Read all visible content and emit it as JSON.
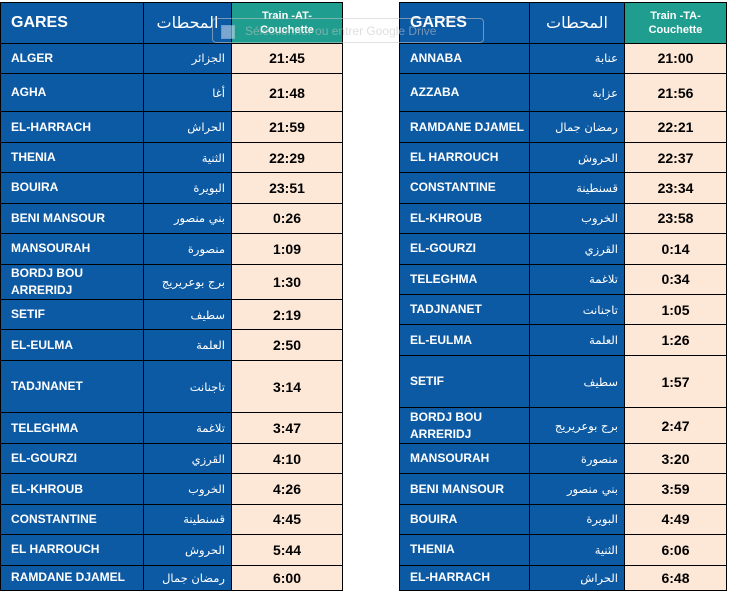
{
  "left_table": {
    "header": {
      "stations_label": "GARES",
      "stations_label_ar": "المحطات",
      "train_label": "Train -AT-\nCouchette"
    },
    "rows": [
      {
        "name": "ALGER",
        "name_ar": "الجزائر",
        "time": "21:45"
      },
      {
        "name": "AGHA",
        "name_ar": "أغا",
        "time": "21:48"
      },
      {
        "name": "EL-HARRACH",
        "name_ar": "الحراش",
        "time": "21:59"
      },
      {
        "name": "THENIA",
        "name_ar": "الثنية",
        "time": "22:29"
      },
      {
        "name": "BOUIRA",
        "name_ar": "البويرة",
        "time": "23:51"
      },
      {
        "name": "BENI MANSOUR",
        "name_ar": "بني منصور",
        "time": "0:26"
      },
      {
        "name": "MANSOURAH",
        "name_ar": "منصورة",
        "time": "1:09"
      },
      {
        "name": "BORDJ BOU ARRERIDJ",
        "name_ar": "برج بوعريريج",
        "time": "1:30"
      },
      {
        "name": "SETIF",
        "name_ar": "سطيف",
        "time": "2:19"
      },
      {
        "name": "EL-EULMA",
        "name_ar": "العلمة",
        "time": "2:50"
      },
      {
        "name": "TADJNANET",
        "name_ar": "تاجنانت",
        "time": "3:14"
      },
      {
        "name": "TELEGHMA",
        "name_ar": "تلاغمة",
        "time": "3:47"
      },
      {
        "name": "EL-GOURZI",
        "name_ar": "القرزي",
        "time": "4:10"
      },
      {
        "name": "EL-KHROUB",
        "name_ar": "الخروب",
        "time": "4:26"
      },
      {
        "name": "CONSTANTINE",
        "name_ar": "قسنطينة",
        "time": "4:45"
      },
      {
        "name": "EL HARROUCH",
        "name_ar": "الحروش",
        "time": "5:44"
      },
      {
        "name": "RAMDANE DJAMEL",
        "name_ar": "رمضان جمال",
        "time": "6:00"
      }
    ]
  },
  "right_table": {
    "header": {
      "stations_label": "GARES",
      "stations_label_ar": "المحطات",
      "train_label": "Train -TA-\nCouchette"
    },
    "rows": [
      {
        "name": "ANNABA",
        "name_ar": "عنابة",
        "time": "21:00"
      },
      {
        "name": "AZZABA",
        "name_ar": "عزابة",
        "time": "21:56"
      },
      {
        "name": "RAMDANE DJAMEL",
        "name_ar": "رمضان جمال",
        "time": "22:21"
      },
      {
        "name": "EL HARROUCH",
        "name_ar": "الحروش",
        "time": "22:37"
      },
      {
        "name": "CONSTANTINE",
        "name_ar": "قسنطينة",
        "time": "23:34"
      },
      {
        "name": "EL-KHROUB",
        "name_ar": "الخروب",
        "time": "23:58"
      },
      {
        "name": "EL-GOURZI",
        "name_ar": "القرزي",
        "time": "0:14"
      },
      {
        "name": "TELEGHMA",
        "name_ar": "تلاغمة",
        "time": "0:34"
      },
      {
        "name": "TADJNANET",
        "name_ar": "تاجنانت",
        "time": "1:05"
      },
      {
        "name": "EL-EULMA",
        "name_ar": "العلمة",
        "time": "1:26"
      },
      {
        "name": "SETIF",
        "name_ar": "سطيف",
        "time": "1:57"
      },
      {
        "name": "BORDJ BOU ARRERIDJ",
        "name_ar": "برج بوعريريج",
        "time": "2:47"
      },
      {
        "name": "MANSOURAH",
        "name_ar": "منصورة",
        "time": "3:20"
      },
      {
        "name": "BENI MANSOUR",
        "name_ar": "بني منصور",
        "time": "3:59"
      },
      {
        "name": "BOUIRA",
        "name_ar": "البويرة",
        "time": "4:49"
      },
      {
        "name": "THENIA",
        "name_ar": "الثنية",
        "time": "6:06"
      },
      {
        "name": "EL-HARRACH",
        "name_ar": "الحراش",
        "time": "6:48"
      }
    ]
  },
  "overlay": {
    "ghost_text": "Sélectionner ou entrer Google Drive"
  },
  "colors": {
    "station_bg": "#0d5aa4",
    "time_bg": "#fde7d6",
    "header_train_bg": "#1f9d8e"
  }
}
